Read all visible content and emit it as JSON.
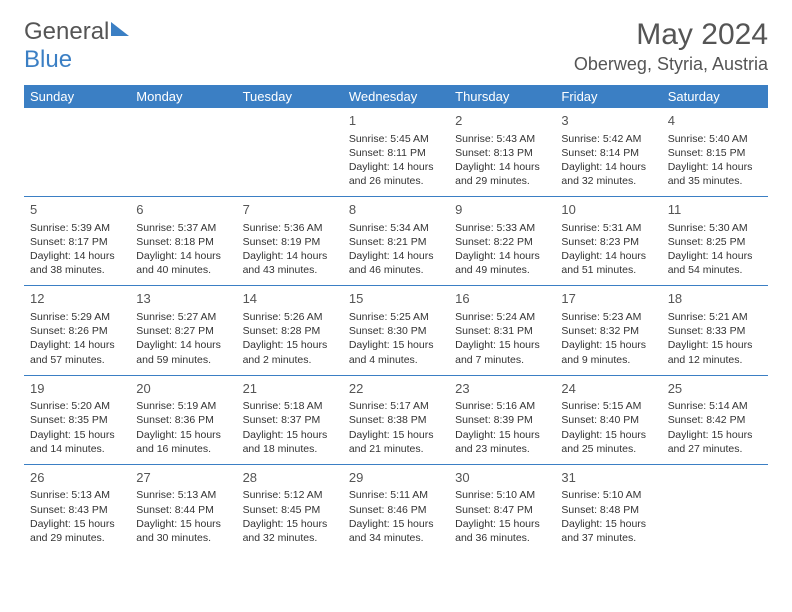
{
  "logo": {
    "part1": "General",
    "part2": "Blue"
  },
  "title": {
    "month": "May 2024",
    "location": "Oberweg, Styria, Austria"
  },
  "colors": {
    "brand": "#3b7fc4",
    "text": "#333333",
    "muted": "#555555",
    "bg": "#ffffff"
  },
  "weekdays": [
    "Sunday",
    "Monday",
    "Tuesday",
    "Wednesday",
    "Thursday",
    "Friday",
    "Saturday"
  ],
  "weeks": [
    [
      null,
      null,
      null,
      {
        "n": "1",
        "sr": "5:45 AM",
        "ss": "8:11 PM",
        "dl": "14 hours and 26 minutes."
      },
      {
        "n": "2",
        "sr": "5:43 AM",
        "ss": "8:13 PM",
        "dl": "14 hours and 29 minutes."
      },
      {
        "n": "3",
        "sr": "5:42 AM",
        "ss": "8:14 PM",
        "dl": "14 hours and 32 minutes."
      },
      {
        "n": "4",
        "sr": "5:40 AM",
        "ss": "8:15 PM",
        "dl": "14 hours and 35 minutes."
      }
    ],
    [
      {
        "n": "5",
        "sr": "5:39 AM",
        "ss": "8:17 PM",
        "dl": "14 hours and 38 minutes."
      },
      {
        "n": "6",
        "sr": "5:37 AM",
        "ss": "8:18 PM",
        "dl": "14 hours and 40 minutes."
      },
      {
        "n": "7",
        "sr": "5:36 AM",
        "ss": "8:19 PM",
        "dl": "14 hours and 43 minutes."
      },
      {
        "n": "8",
        "sr": "5:34 AM",
        "ss": "8:21 PM",
        "dl": "14 hours and 46 minutes."
      },
      {
        "n": "9",
        "sr": "5:33 AM",
        "ss": "8:22 PM",
        "dl": "14 hours and 49 minutes."
      },
      {
        "n": "10",
        "sr": "5:31 AM",
        "ss": "8:23 PM",
        "dl": "14 hours and 51 minutes."
      },
      {
        "n": "11",
        "sr": "5:30 AM",
        "ss": "8:25 PM",
        "dl": "14 hours and 54 minutes."
      }
    ],
    [
      {
        "n": "12",
        "sr": "5:29 AM",
        "ss": "8:26 PM",
        "dl": "14 hours and 57 minutes."
      },
      {
        "n": "13",
        "sr": "5:27 AM",
        "ss": "8:27 PM",
        "dl": "14 hours and 59 minutes."
      },
      {
        "n": "14",
        "sr": "5:26 AM",
        "ss": "8:28 PM",
        "dl": "15 hours and 2 minutes."
      },
      {
        "n": "15",
        "sr": "5:25 AM",
        "ss": "8:30 PM",
        "dl": "15 hours and 4 minutes."
      },
      {
        "n": "16",
        "sr": "5:24 AM",
        "ss": "8:31 PM",
        "dl": "15 hours and 7 minutes."
      },
      {
        "n": "17",
        "sr": "5:23 AM",
        "ss": "8:32 PM",
        "dl": "15 hours and 9 minutes."
      },
      {
        "n": "18",
        "sr": "5:21 AM",
        "ss": "8:33 PM",
        "dl": "15 hours and 12 minutes."
      }
    ],
    [
      {
        "n": "19",
        "sr": "5:20 AM",
        "ss": "8:35 PM",
        "dl": "15 hours and 14 minutes."
      },
      {
        "n": "20",
        "sr": "5:19 AM",
        "ss": "8:36 PM",
        "dl": "15 hours and 16 minutes."
      },
      {
        "n": "21",
        "sr": "5:18 AM",
        "ss": "8:37 PM",
        "dl": "15 hours and 18 minutes."
      },
      {
        "n": "22",
        "sr": "5:17 AM",
        "ss": "8:38 PM",
        "dl": "15 hours and 21 minutes."
      },
      {
        "n": "23",
        "sr": "5:16 AM",
        "ss": "8:39 PM",
        "dl": "15 hours and 23 minutes."
      },
      {
        "n": "24",
        "sr": "5:15 AM",
        "ss": "8:40 PM",
        "dl": "15 hours and 25 minutes."
      },
      {
        "n": "25",
        "sr": "5:14 AM",
        "ss": "8:42 PM",
        "dl": "15 hours and 27 minutes."
      }
    ],
    [
      {
        "n": "26",
        "sr": "5:13 AM",
        "ss": "8:43 PM",
        "dl": "15 hours and 29 minutes."
      },
      {
        "n": "27",
        "sr": "5:13 AM",
        "ss": "8:44 PM",
        "dl": "15 hours and 30 minutes."
      },
      {
        "n": "28",
        "sr": "5:12 AM",
        "ss": "8:45 PM",
        "dl": "15 hours and 32 minutes."
      },
      {
        "n": "29",
        "sr": "5:11 AM",
        "ss": "8:46 PM",
        "dl": "15 hours and 34 minutes."
      },
      {
        "n": "30",
        "sr": "5:10 AM",
        "ss": "8:47 PM",
        "dl": "15 hours and 36 minutes."
      },
      {
        "n": "31",
        "sr": "5:10 AM",
        "ss": "8:48 PM",
        "dl": "15 hours and 37 minutes."
      },
      null
    ]
  ],
  "labels": {
    "sunrise": "Sunrise:",
    "sunset": "Sunset:",
    "daylight": "Daylight:"
  }
}
